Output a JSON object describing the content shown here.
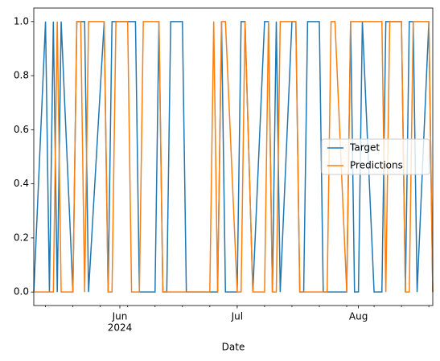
{
  "chart_data": {
    "type": "line",
    "x": [
      "2024-05-10",
      "2024-05-13",
      "2024-05-14",
      "2024-05-15",
      "2024-05-16",
      "2024-05-17",
      "2024-05-20",
      "2024-05-21",
      "2024-05-22",
      "2024-05-23",
      "2024-05-24",
      "2024-05-28",
      "2024-05-29",
      "2024-05-30",
      "2024-05-31",
      "2024-06-03",
      "2024-06-04",
      "2024-06-05",
      "2024-06-06",
      "2024-06-07",
      "2024-06-10",
      "2024-06-11",
      "2024-06-12",
      "2024-06-13",
      "2024-06-14",
      "2024-06-17",
      "2024-06-18",
      "2024-06-20",
      "2024-06-21",
      "2024-06-24",
      "2024-06-25",
      "2024-06-26",
      "2024-06-27",
      "2024-06-28",
      "2024-07-01",
      "2024-07-02",
      "2024-07-03",
      "2024-07-05",
      "2024-07-08",
      "2024-07-09",
      "2024-07-10",
      "2024-07-11",
      "2024-07-12",
      "2024-07-15",
      "2024-07-16",
      "2024-07-17",
      "2024-07-18",
      "2024-07-19",
      "2024-07-22",
      "2024-07-23",
      "2024-07-24",
      "2024-07-25",
      "2024-07-26",
      "2024-07-29",
      "2024-07-30",
      "2024-07-31",
      "2024-08-01",
      "2024-08-02",
      "2024-08-05",
      "2024-08-06",
      "2024-08-07",
      "2024-08-08",
      "2024-08-09",
      "2024-08-12",
      "2024-08-13",
      "2024-08-14",
      "2024-08-15",
      "2024-08-16",
      "2024-08-19",
      "2024-08-20"
    ],
    "series": [
      {
        "name": "Target",
        "color": "#1f77b4",
        "values": [
          0,
          1,
          0,
          1,
          0,
          1,
          0,
          1,
          1,
          1,
          0,
          1,
          0,
          1,
          1,
          1,
          1,
          1,
          0,
          0,
          0,
          1,
          0,
          0,
          1,
          1,
          0,
          0,
          0,
          0,
          0,
          0,
          1,
          0,
          0,
          1,
          1,
          0,
          1,
          1,
          0,
          1,
          0,
          1,
          1,
          0,
          0,
          1,
          1,
          0,
          0,
          0,
          0,
          0,
          1,
          0,
          0,
          1,
          0,
          0,
          0,
          1,
          1,
          1,
          0,
          1,
          1,
          0,
          1,
          0
        ]
      },
      {
        "name": "Predictions",
        "color": "#ff7f0e",
        "values": [
          0,
          0,
          0,
          0,
          1,
          0,
          0,
          1,
          1,
          0,
          1,
          1,
          0,
          0,
          1,
          1,
          0,
          0,
          0,
          1,
          1,
          1,
          0,
          0,
          0,
          0,
          0,
          0,
          0,
          0,
          1,
          0,
          1,
          1,
          0,
          0,
          1,
          0,
          0,
          1,
          0,
          0,
          1,
          1,
          1,
          0,
          0,
          0,
          0,
          0,
          0,
          1,
          1,
          0,
          1,
          1,
          1,
          1,
          1,
          1,
          1,
          0,
          1,
          1,
          0,
          0,
          1,
          1,
          1,
          0
        ]
      }
    ],
    "xlim": [
      "2024-05-10",
      "2024-08-20"
    ],
    "xticks": [
      {
        "value": "2024-06-01",
        "label": "Jun"
      },
      {
        "value": "2024-07-01",
        "label": "Jul"
      },
      {
        "value": "2024-08-01",
        "label": "Aug"
      }
    ],
    "year_label": "2024",
    "xlabel": "Date",
    "ylim": [
      -0.05,
      1.05
    ],
    "yticks": [
      {
        "value": 0,
        "label": "0.0"
      },
      {
        "value": 0.2,
        "label": "0.2"
      },
      {
        "value": 0.4,
        "label": "0.4"
      },
      {
        "value": 0.6,
        "label": "0.6"
      },
      {
        "value": 0.8,
        "label": "0.8"
      },
      {
        "value": 1,
        "label": "1.0"
      }
    ],
    "legend": "center right"
  }
}
